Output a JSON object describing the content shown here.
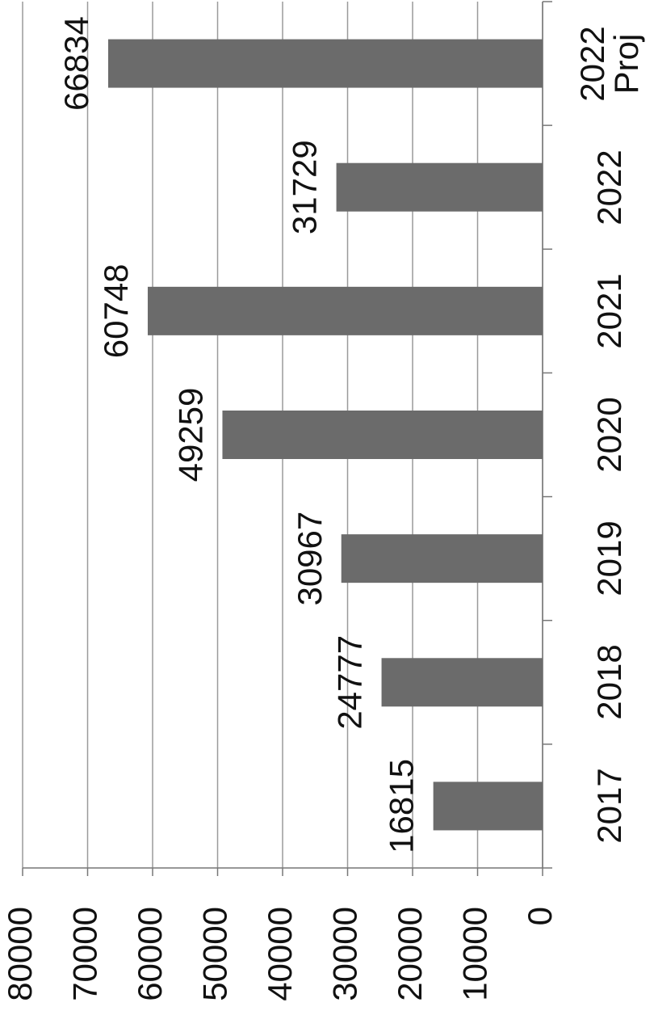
{
  "chart_data": {
    "type": "bar",
    "orientation": "horizontal",
    "categories": [
      "2017",
      "2018",
      "2019",
      "2020",
      "2021",
      "2022",
      "2022 Proj"
    ],
    "values": [
      16815,
      24777,
      30967,
      49259,
      60748,
      31729,
      66834
    ],
    "color": "#6b6b6b",
    "ylim": [
      0,
      80000
    ],
    "yticks": [
      0,
      10000,
      20000,
      30000,
      40000,
      50000,
      60000,
      70000,
      80000
    ],
    "grid": true
  }
}
